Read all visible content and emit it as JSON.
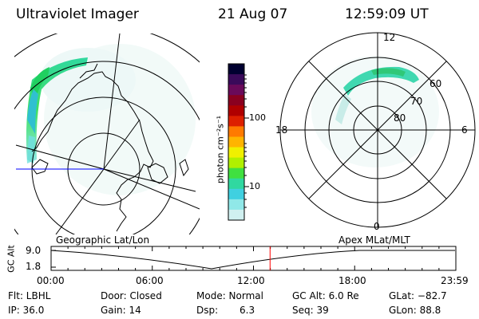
{
  "header": {
    "instrument": "Ultraviolet Imager",
    "date": "21 Aug 07",
    "time": "12:59:09 UT"
  },
  "left_panel": {
    "label": "Geographic Lat/Lon"
  },
  "right_panel": {
    "label": "Apex  MLat/MLT",
    "mlt_labels": [
      "12",
      "18",
      "6",
      "0"
    ],
    "lat_labels": [
      "60",
      "70",
      "80"
    ]
  },
  "colorbar": {
    "unit_label": "photon cm⁻²s⁻¹",
    "tick_labels": [
      "100",
      "10"
    ],
    "scale": "log",
    "colors": [
      "#000030",
      "#3a0a5a",
      "#6a0a5a",
      "#8a0020",
      "#b00000",
      "#dd2000",
      "#ff7a00",
      "#ffb400",
      "#f0f000",
      "#b0f000",
      "#40e040",
      "#30d8a0",
      "#40d0e0",
      "#90e8e8",
      "#d0f0f0"
    ]
  },
  "timeline": {
    "yaxis_label": "GC Alt",
    "y_ticks": [
      "9.0",
      "1.8"
    ],
    "x_ticks": [
      "00:00",
      "06:00",
      "12:00",
      "18:00",
      "23:59"
    ],
    "current_time_fraction": 0.541,
    "marker_color": "#ff0000"
  },
  "status": {
    "flt": "Flt: LBHL",
    "ip": "IP: 36.0",
    "door": "Door: Closed",
    "gain": "Gain: 14",
    "mode": "Mode: Normal",
    "dsp": "Dsp:",
    "dsp_val": "6.3",
    "gcalt": "GC Alt: 6.0 Re",
    "seq": "Seq: 39",
    "glat": "GLat: −82.7",
    "glon": "GLon:  88.8"
  }
}
